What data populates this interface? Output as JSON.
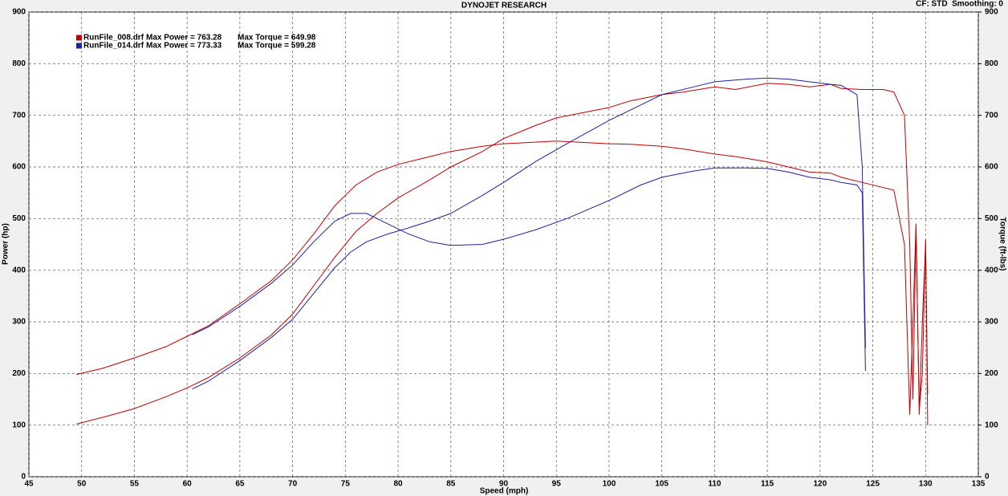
{
  "chart_data": {
    "type": "line",
    "title": "DYNOJET RESEARCH",
    "header_right": "CF: STD  Smoothing: 0",
    "xlabel": "Speed (mph)",
    "ylabel": "Power (hp)",
    "y2label": "Torque (ft-lbs)",
    "xlim": [
      45,
      135
    ],
    "xticks": [
      45,
      50,
      55,
      60,
      65,
      70,
      75,
      80,
      85,
      90,
      95,
      100,
      105,
      110,
      115,
      120,
      125,
      130,
      135
    ],
    "ylim": [
      0,
      900
    ],
    "yticks": [
      0,
      100,
      200,
      300,
      400,
      500,
      600,
      700,
      800,
      900
    ],
    "y2lim": [
      0,
      900
    ],
    "y2ticks": [
      0,
      100,
      200,
      300,
      400,
      500,
      600,
      700,
      800,
      900
    ],
    "grid": true,
    "series": [
      {
        "name": "RunFile_008.drf",
        "color": "#c00000",
        "stats": [
          "Max Power = 763.28",
          "Max Torque = 649.98"
        ],
        "x": [
          49.5,
          52,
          55,
          58,
          60,
          62,
          65,
          68,
          70,
          72,
          74,
          76,
          78,
          80,
          83,
          85,
          88,
          90,
          93,
          95,
          97,
          100,
          102,
          105,
          107,
          110,
          112,
          115,
          117,
          119,
          121,
          122,
          124,
          126,
          127,
          128,
          128.5,
          128.8,
          129.1,
          129.4,
          129.7,
          130,
          130.2
        ],
        "power": [
          102,
          115,
          132,
          155,
          172,
          192,
          230,
          275,
          315,
          370,
          425,
          475,
          510,
          540,
          575,
          600,
          630,
          655,
          680,
          695,
          703,
          715,
          728,
          740,
          745,
          755,
          750,
          762,
          760,
          755,
          760,
          752,
          750,
          750,
          745,
          700,
          450,
          150,
          480,
          130,
          200,
          460,
          100
        ],
        "torque": [
          198,
          210,
          230,
          252,
          272,
          292,
          335,
          380,
          420,
          470,
          525,
          565,
          590,
          605,
          620,
          630,
          640,
          645,
          648,
          650,
          648,
          645,
          644,
          640,
          635,
          625,
          620,
          610,
          600,
          590,
          588,
          580,
          570,
          560,
          555,
          450,
          120,
          300,
          490,
          120,
          300,
          450,
          160
        ]
      },
      {
        "name": "RunFile_014.drf",
        "color": "#2020a0",
        "stats": [
          "Max Power = 773.33",
          "Max Torque = 599.28"
        ],
        "x": [
          60.5,
          62,
          65,
          68,
          70,
          72,
          74,
          75.5,
          77,
          79,
          81,
          83,
          85,
          88,
          90,
          93,
          96,
          100,
          103,
          105,
          108,
          110,
          113,
          115,
          117,
          119,
          121,
          122,
          123.5,
          124,
          124.3
        ],
        "power": [
          170,
          185,
          225,
          270,
          305,
          355,
          405,
          435,
          455,
          470,
          482,
          495,
          510,
          545,
          570,
          610,
          645,
          690,
          720,
          740,
          755,
          765,
          770,
          772,
          770,
          765,
          760,
          758,
          740,
          600,
          250
        ],
        "torque": [
          275,
          290,
          330,
          375,
          410,
          455,
          495,
          510,
          510,
          490,
          470,
          455,
          448,
          450,
          460,
          478,
          500,
          535,
          565,
          580,
          592,
          598,
          598,
          597,
          590,
          580,
          575,
          570,
          565,
          550,
          205
        ]
      }
    ]
  }
}
